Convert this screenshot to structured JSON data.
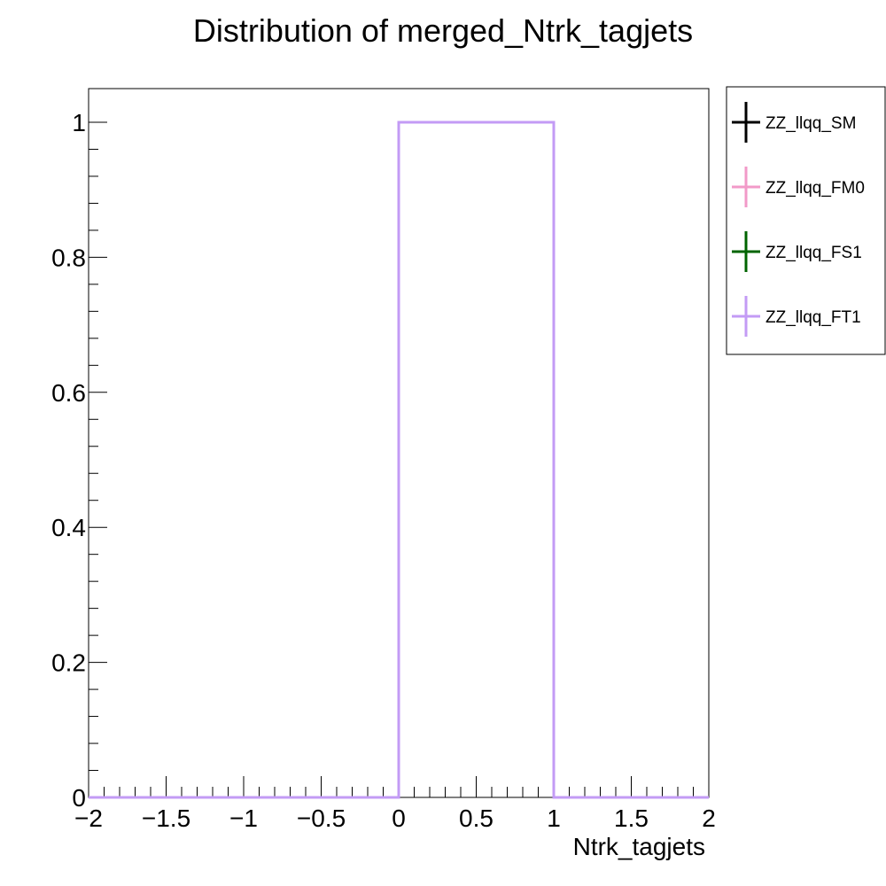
{
  "chart_data": {
    "type": "histogram",
    "title": "Distribution of merged_Ntrk_tagjets",
    "xlabel": "Ntrk_tagjets",
    "ylabel": "",
    "xlim": [
      -2,
      2
    ],
    "ylim": [
      0,
      1.05
    ],
    "x_ticks": [
      -2,
      -1.5,
      -1,
      -0.5,
      0,
      0.5,
      1,
      1.5,
      2
    ],
    "x_tick_labels": [
      "−2",
      "−1.5",
      "−1",
      "−0.5",
      "0",
      "0.5",
      "1",
      "1.5",
      "2"
    ],
    "y_ticks": [
      0,
      0.2,
      0.4,
      0.6,
      0.8,
      1
    ],
    "y_tick_labels": [
      "0",
      "0.2",
      "0.4",
      "0.6",
      "0.8",
      "1"
    ],
    "bin_edges": [
      -2,
      -1.5,
      -1,
      -0.5,
      0,
      0.5,
      1,
      1.5,
      2
    ],
    "series": [
      {
        "name": "ZZ_llqq_SM",
        "color": "#000000",
        "values": [
          0,
          0,
          0,
          0,
          1,
          1,
          0,
          0
        ]
      },
      {
        "name": "ZZ_llqq_FM0",
        "color": "#f29ac8",
        "values": [
          0,
          0,
          0,
          0,
          1,
          1,
          0,
          0
        ]
      },
      {
        "name": "ZZ_llqq_FS1",
        "color": "#006400",
        "values": [
          0,
          0,
          0,
          0,
          1,
          1,
          0,
          0
        ]
      },
      {
        "name": "ZZ_llqq_FT1",
        "color": "#c39bf5",
        "values": [
          0,
          0,
          0,
          0,
          1,
          1,
          0,
          0
        ]
      }
    ],
    "legend_position": "top-right, outside plot",
    "grid": false
  }
}
